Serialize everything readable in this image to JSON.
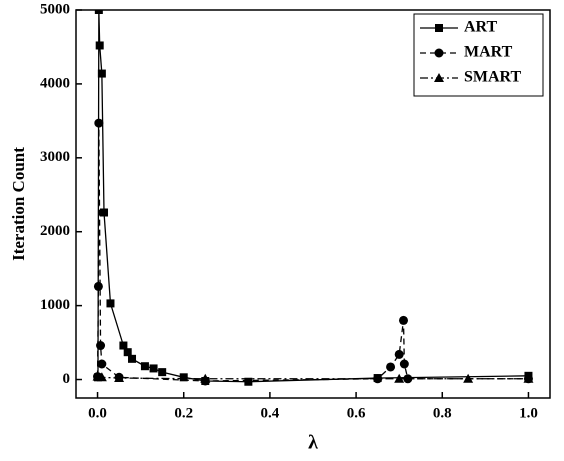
{
  "chart_data": {
    "type": "line",
    "x_label": "λ",
    "y_label": "Iteration Count",
    "xlim": [
      -0.05,
      1.05
    ],
    "ylim": [
      -250,
      5000
    ],
    "xticks": [
      {
        "value": 0,
        "label": "0.0"
      },
      {
        "value": 0.2,
        "label": "0.2"
      },
      {
        "value": 0.4,
        "label": "0.4"
      },
      {
        "value": 0.6,
        "label": "0.6"
      },
      {
        "value": 0.8,
        "label": "0.8"
      },
      {
        "value": 1,
        "label": "1.0"
      }
    ],
    "yticks": [
      0,
      1000,
      2000,
      3000,
      4000,
      5000
    ],
    "grid": false,
    "legend": "upper right",
    "series": [
      {
        "name": "ART",
        "color": "#000000",
        "marker": "square",
        "dash": "solid",
        "x": [
          0.001,
          0.003,
          0.005,
          0.01,
          0.015,
          0.03,
          0.06,
          0.07,
          0.08,
          0.11,
          0.13,
          0.15,
          0.2,
          0.25,
          0.35,
          0.65,
          1.0
        ],
        "values": [
          30,
          5000,
          4520,
          4140,
          2260,
          1030,
          460,
          370,
          280,
          180,
          150,
          100,
          30,
          -20,
          -30,
          20,
          50
        ]
      },
      {
        "name": "MART",
        "color": "#000000",
        "marker": "circle",
        "dash": "dashed",
        "x": [
          0.0,
          0.002,
          0.003,
          0.007,
          0.01,
          0.05,
          0.25,
          0.65,
          0.68,
          0.7,
          0.71,
          0.712,
          0.72,
          1.0
        ],
        "values": [
          40,
          1260,
          3470,
          460,
          210,
          30,
          -20,
          10,
          170,
          340,
          800,
          210,
          10,
          10
        ]
      },
      {
        "name": "SMART",
        "color": "#000000",
        "marker": "triangle",
        "dash": "dashdot",
        "x": [
          0.0,
          0.01,
          0.05,
          0.25,
          0.7,
          0.86,
          1.0
        ],
        "values": [
          40,
          30,
          20,
          10,
          10,
          10,
          10
        ]
      }
    ]
  }
}
